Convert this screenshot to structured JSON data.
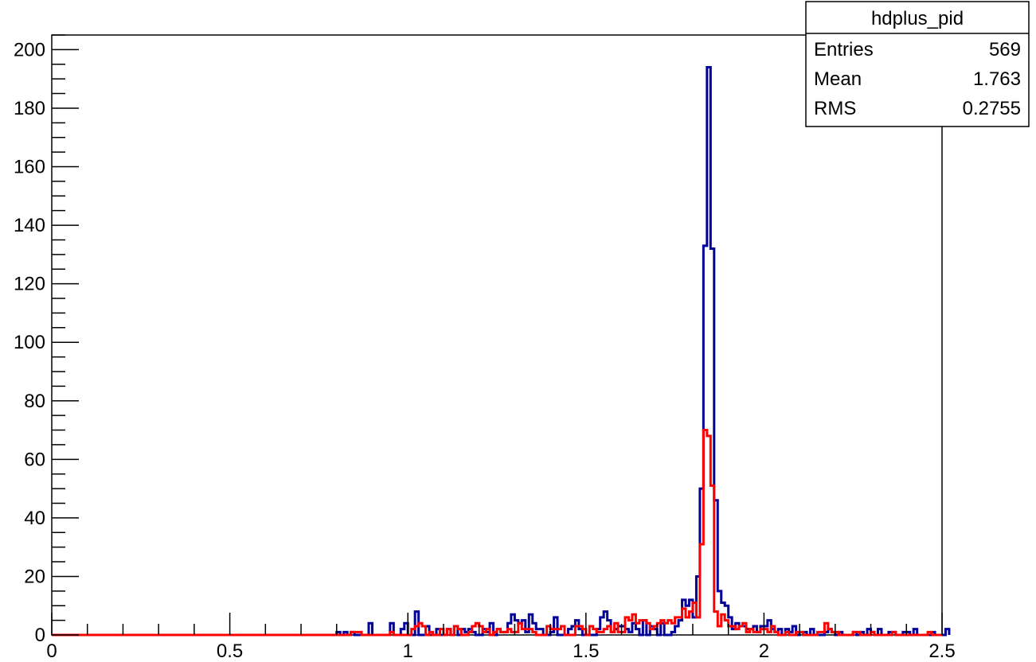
{
  "chart_data": {
    "type": "histogram",
    "title": "",
    "xlabel": "",
    "ylabel": "",
    "xlim": [
      0,
      2.5
    ],
    "ylim": [
      0,
      205
    ],
    "bin_width": 0.01,
    "x_ticks": [
      {
        "value": 0,
        "label": "0"
      },
      {
        "value": 0.5,
        "label": "0.5"
      },
      {
        "value": 1,
        "label": "1"
      },
      {
        "value": 1.5,
        "label": "1.5"
      },
      {
        "value": 2,
        "label": "2"
      },
      {
        "value": 2.5,
        "label": "2.5"
      }
    ],
    "y_ticks": [
      {
        "value": 0,
        "label": "0"
      },
      {
        "value": 20,
        "label": "20"
      },
      {
        "value": 40,
        "label": "40"
      },
      {
        "value": 60,
        "label": "60"
      },
      {
        "value": 80,
        "label": "80"
      },
      {
        "value": 100,
        "label": "100"
      },
      {
        "value": 120,
        "label": "120"
      },
      {
        "value": 140,
        "label": "140"
      },
      {
        "value": 160,
        "label": "160"
      },
      {
        "value": 180,
        "label": "180"
      },
      {
        "value": 200,
        "label": "200"
      }
    ],
    "series": [
      {
        "color": "#000099",
        "start": 0.8,
        "values": [
          1,
          0,
          1,
          0,
          1,
          0,
          0,
          0,
          0,
          4,
          0,
          0,
          0,
          0,
          0,
          4,
          0,
          0,
          2,
          4,
          0,
          0,
          8,
          0,
          0,
          3,
          0,
          0,
          2,
          0,
          0,
          2,
          0,
          3,
          0,
          2,
          1,
          2,
          1,
          0,
          0,
          2,
          1,
          4,
          0,
          2,
          1,
          1,
          4,
          7,
          5,
          4,
          5,
          1,
          7,
          4,
          2,
          2,
          0,
          0,
          1,
          6,
          0,
          0,
          0,
          2,
          3,
          5,
          2,
          0,
          0,
          0,
          0,
          2,
          6,
          8,
          5,
          1,
          2,
          3,
          3,
          2,
          1,
          4,
          2,
          0,
          5,
          0,
          3,
          2,
          0,
          4,
          0,
          0,
          1,
          3,
          5,
          12,
          10,
          12,
          6,
          20,
          50,
          133,
          194,
          132,
          46,
          15,
          11,
          10,
          6,
          2,
          4,
          3,
          3,
          2,
          2,
          3,
          1,
          3,
          3,
          5,
          2,
          1,
          2,
          0,
          2,
          1,
          3,
          0,
          1,
          1,
          0,
          2,
          0,
          0,
          0,
          1,
          2,
          1,
          0,
          1,
          0,
          0,
          0,
          1,
          0,
          1,
          0,
          2,
          1,
          0,
          2,
          0,
          0,
          1,
          1,
          0,
          0,
          1,
          1,
          0,
          2,
          0,
          0,
          0,
          0,
          1,
          0,
          0,
          0,
          2
        ]
      },
      {
        "color": "#ff0000",
        "start": 0.8,
        "values": [
          0,
          0,
          0,
          0,
          1,
          1,
          1,
          0,
          0,
          0,
          0,
          0,
          0,
          0,
          0,
          1,
          0,
          0,
          0,
          0,
          0,
          2,
          3,
          4,
          3,
          0,
          1,
          0,
          0,
          2,
          0,
          2,
          0,
          3,
          2,
          0,
          0,
          1,
          3,
          4,
          3,
          1,
          2,
          0,
          1,
          2,
          1,
          1,
          2,
          1,
          1,
          4,
          2,
          2,
          2,
          1,
          0,
          0,
          0,
          3,
          2,
          2,
          2,
          3,
          0,
          0,
          0,
          3,
          3,
          2,
          0,
          3,
          2,
          1,
          1,
          2,
          3,
          1,
          4,
          1,
          1,
          6,
          5,
          7,
          4,
          5,
          5,
          4,
          2,
          3,
          4,
          5,
          4,
          5,
          4,
          6,
          6,
          9,
          6,
          8,
          11,
          6,
          31,
          70,
          68,
          51,
          8,
          3,
          7,
          5,
          3,
          3,
          2,
          3,
          4,
          1,
          2,
          1,
          1,
          2,
          2,
          1,
          3,
          1,
          0,
          0,
          1,
          0,
          0,
          1,
          1,
          0,
          0,
          0,
          0,
          1,
          1,
          4,
          2,
          1,
          1,
          0,
          0,
          0,
          0,
          1,
          1,
          0,
          0,
          0,
          1,
          0,
          0,
          0,
          0,
          0,
          1,
          0,
          0,
          0,
          0,
          0,
          0,
          0,
          0,
          0,
          1
        ]
      }
    ],
    "stats_box": {
      "name": "hdplus_pid",
      "rows": [
        {
          "label": "Entries",
          "value": "569"
        },
        {
          "label": "Mean",
          "value": "1.763"
        },
        {
          "label": "RMS",
          "value": "0.2755"
        }
      ]
    }
  }
}
